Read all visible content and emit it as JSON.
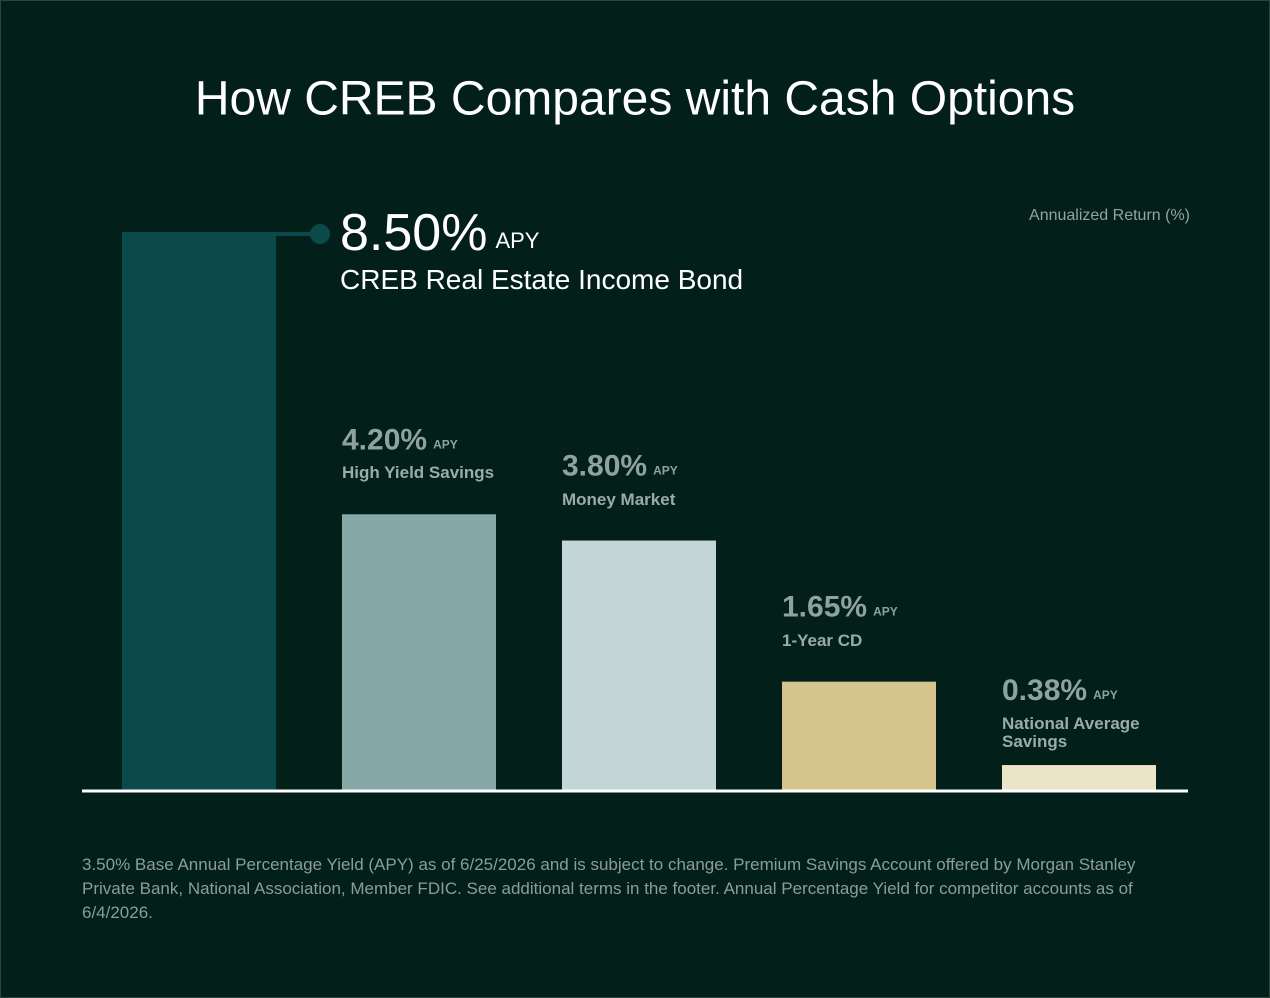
{
  "chart_data": {
    "type": "bar",
    "title": "How CREB Compares with Cash Options",
    "y_axis_label": "Annualized Return (%)",
    "categories": [
      "CREB Real Estate Income Bond",
      "High Yield Savings",
      "Money Market",
      "1-Year CD",
      "National Average Savings"
    ],
    "values": [
      8.5,
      4.2,
      3.8,
      1.65,
      0.38
    ],
    "value_labels": [
      "8.50%",
      "4.20%",
      "3.80%",
      "1.65%",
      "0.38%"
    ],
    "value_suffix": "APY",
    "colors": [
      "#0b4a4a",
      "#86a9a7",
      "#c3d5d4",
      "#d5c48b",
      "#ebe4c8"
    ],
    "ylim": [
      0,
      8.5
    ],
    "footnote": "3.50% Base Annual Percentage Yield (APY) as of 6/25/2026 and is subject to change. Premium Savings Account offered by Morgan Stanley Private Bank, National Association, Member FDIC. See additional terms in the footer. Annual Percentage Yield for competitor accounts as of 6/4/2026."
  }
}
